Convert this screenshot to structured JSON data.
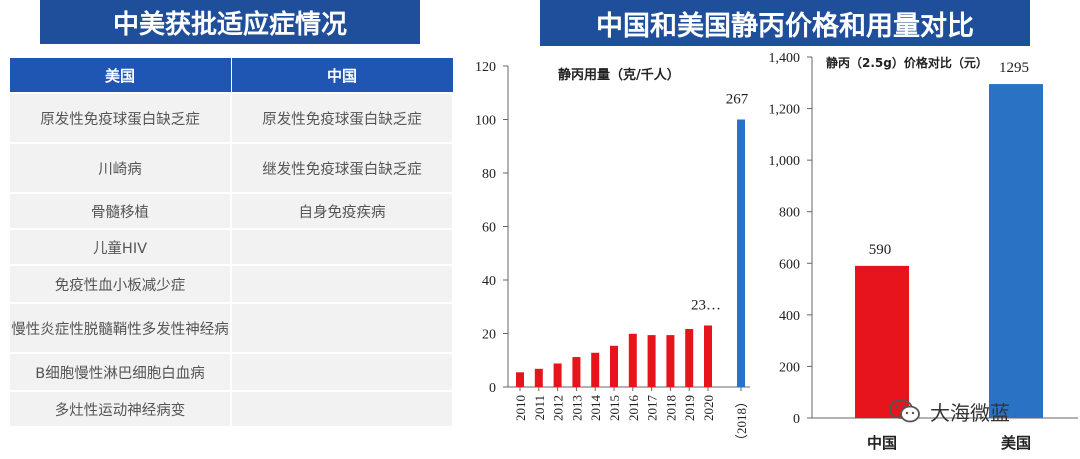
{
  "left_title": "中美获批适应症情况",
  "right_title": "中国和美国静丙价格和用量对比",
  "table": {
    "headers": [
      "美国",
      "中国"
    ],
    "rows": [
      [
        "原发性免疫球蛋白缺乏症",
        "原发性免疫球蛋白缺乏症"
      ],
      [
        "川崎病",
        "继发性免疫球蛋白缺乏症"
      ],
      [
        "骨髓移植",
        "自身免疫疾病"
      ],
      [
        "儿童HIV",
        ""
      ],
      [
        "免疫性血小板减少症",
        ""
      ],
      [
        "慢性炎症性脱髓鞘性多发性神经病",
        ""
      ],
      [
        "B细胞慢性淋巴细胞白血病",
        ""
      ],
      [
        "多灶性运动神经病变",
        ""
      ]
    ]
  },
  "chart_data": [
    {
      "type": "bar",
      "title": "静丙用量（克/千人）",
      "categories": [
        "2010",
        "2011",
        "2012",
        "2013",
        "2014",
        "2015",
        "2016",
        "2017",
        "2018",
        "2019",
        "2020",
        "（2018）"
      ],
      "values": [
        5.5,
        6.8,
        8.8,
        11.2,
        12.8,
        15.4,
        19.9,
        19.4,
        19.4,
        21.7,
        23,
        267
      ],
      "colors": [
        "#e8141b",
        "#e8141b",
        "#e8141b",
        "#e8141b",
        "#e8141b",
        "#e8141b",
        "#e8141b",
        "#e8141b",
        "#e8141b",
        "#e8141b",
        "#e8141b",
        "#2a72c4"
      ],
      "axis_break": {
        "category": "（2018）",
        "actual": 267,
        "drawn_at": 100
      },
      "data_labels": [
        {
          "category": "2020",
          "text": "23…"
        },
        {
          "category": "（2018）",
          "text": "267"
        }
      ],
      "yticks": [
        0,
        20,
        40,
        60,
        80,
        100,
        120
      ],
      "ylim": [
        0,
        120
      ],
      "grid": false
    },
    {
      "type": "bar",
      "title": "静丙（2.5g）价格对比（元）",
      "categories": [
        "中国",
        "美国"
      ],
      "values": [
        590,
        1295
      ],
      "colors": [
        "#e8141b",
        "#2a72c4"
      ],
      "data_labels": [
        "590",
        "1295"
      ],
      "yticks": [
        "0",
        "200",
        "400",
        "600",
        "800",
        "1,000",
        "1,200",
        "1,400"
      ],
      "ylim": [
        0,
        1400
      ],
      "grid": false
    }
  ],
  "watermark": {
    "text": "大海微蓝",
    "icon": "wechat-icon"
  }
}
